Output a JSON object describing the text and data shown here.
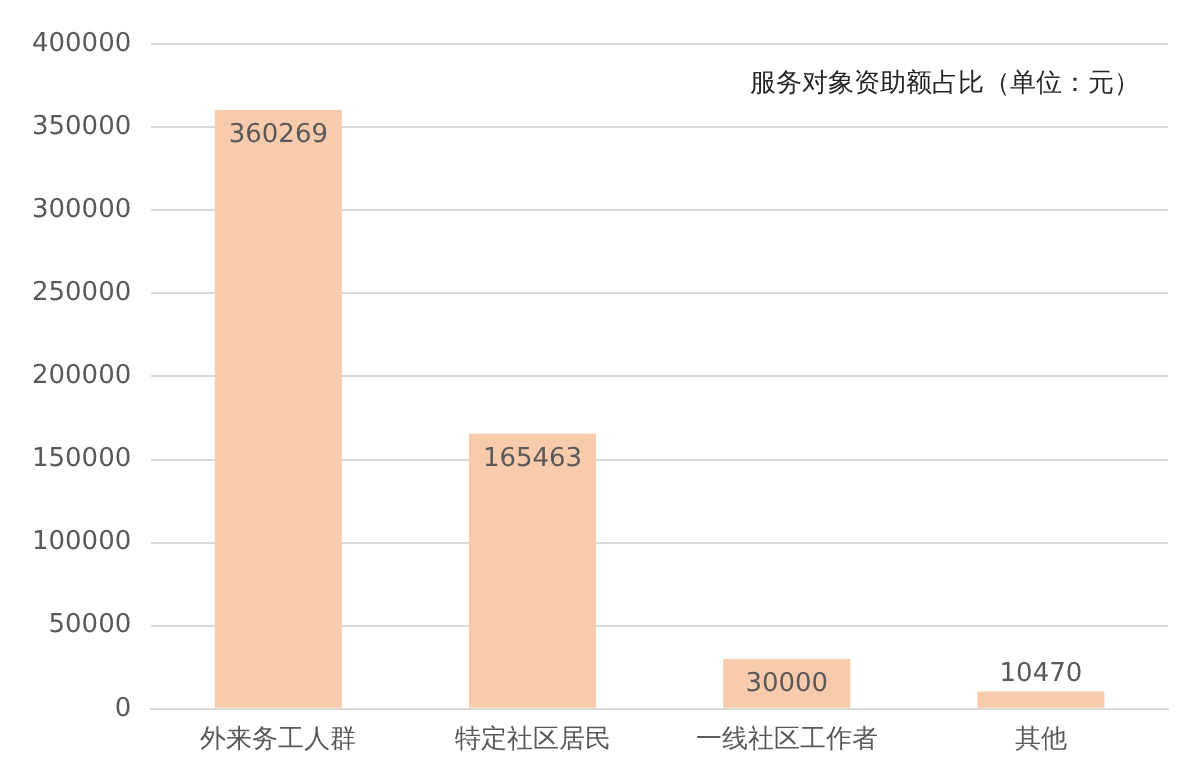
{
  "chart_data": {
    "type": "bar",
    "title": "服务对象资助额占比（单位：元）",
    "categories": [
      "外来务工人群",
      "特定社区居民",
      "一线社区工作者",
      "其他"
    ],
    "values": [
      360269,
      165463,
      30000,
      10470
    ],
    "color": "#f8cbad",
    "ylim": [
      0,
      400000
    ],
    "yticks": [
      0,
      50000,
      100000,
      150000,
      200000,
      250000,
      300000,
      350000,
      400000
    ],
    "grid": "y",
    "data_labels": true,
    "legend": false
  }
}
